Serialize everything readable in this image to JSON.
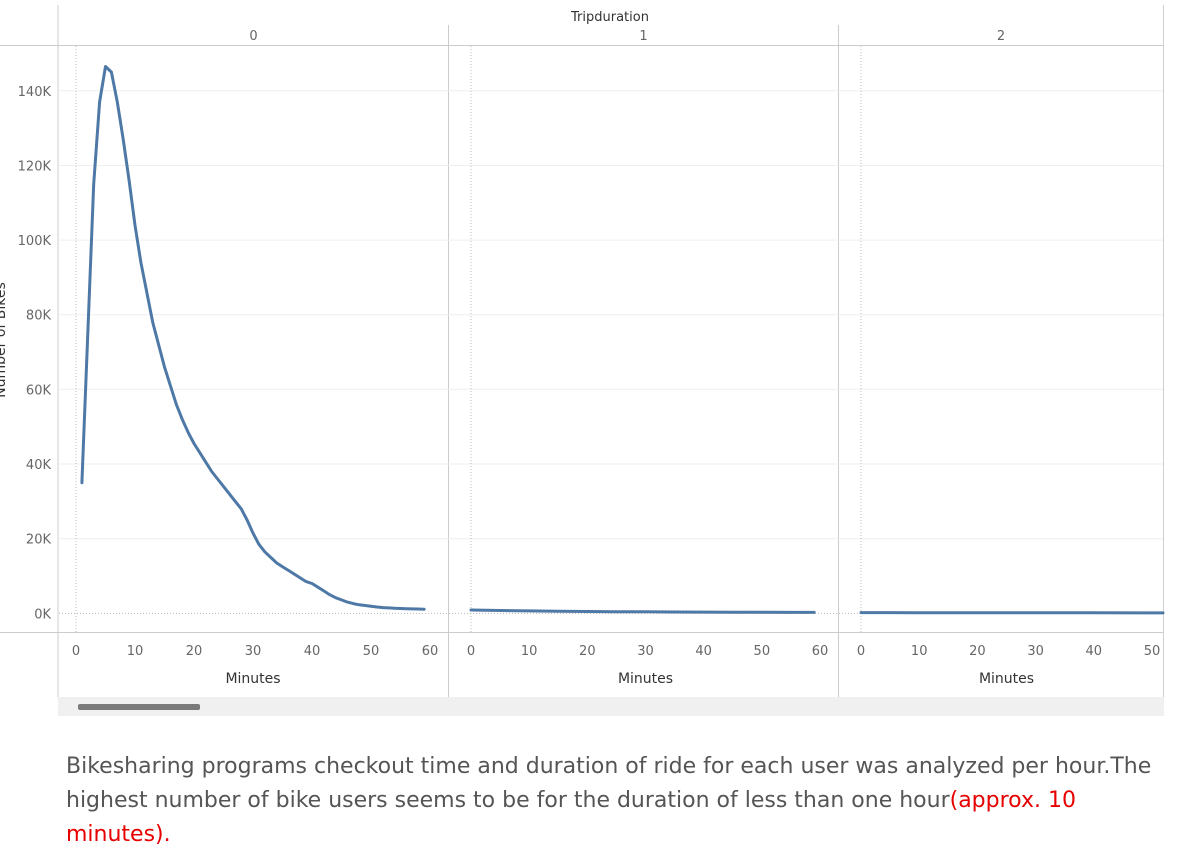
{
  "chart_data": {
    "type": "line",
    "column_header": "Tripduration",
    "ylabel": "Number of Bikes",
    "ylim": [
      -5000,
      152000
    ],
    "y_ticks": [
      {
        "label": "0K",
        "value": 0
      },
      {
        "label": "20K",
        "value": 20000
      },
      {
        "label": "40K",
        "value": 40000
      },
      {
        "label": "60K",
        "value": 60000
      },
      {
        "label": "80K",
        "value": 80000
      },
      {
        "label": "100K",
        "value": 100000
      },
      {
        "label": "120K",
        "value": 120000
      },
      {
        "label": "140K",
        "value": 140000
      }
    ],
    "line_color": "#4e79a7",
    "panels": [
      {
        "label": "0",
        "xlabel": "Minutes",
        "xlim": [
          -2,
          63
        ],
        "x_ticks": [
          0,
          10,
          20,
          30,
          40,
          50,
          60
        ],
        "series": [
          {
            "x": [
              1,
              2,
              3,
              4,
              5,
              6,
              7,
              8,
              9,
              10,
              11,
              12,
              13,
              14,
              15,
              16,
              17,
              18,
              19,
              20,
              21,
              22,
              23,
              24,
              25,
              26,
              27,
              28,
              29,
              30,
              31,
              32,
              33,
              34,
              35,
              36,
              37,
              38,
              39,
              40,
              41,
              42,
              43,
              44,
              45,
              46,
              47,
              48,
              49,
              50,
              51,
              52,
              53,
              54,
              55,
              56,
              57,
              58,
              59
            ],
            "y": [
              35000,
              75000,
              115000,
              137000,
              146500,
              145000,
              137000,
              127000,
              116000,
              104000,
              94000,
              86000,
              78000,
              72000,
              66000,
              61000,
              56000,
              52000,
              48500,
              45500,
              43000,
              40500,
              38000,
              36000,
              34000,
              32000,
              30000,
              28000,
              25000,
              21500,
              18500,
              16500,
              15000,
              13500,
              12500,
              11500,
              10500,
              9500,
              8500,
              8000,
              7000,
              6000,
              5000,
              4200,
              3600,
              3000,
              2600,
              2300,
              2100,
              1900,
              1700,
              1550,
              1450,
              1350,
              1300,
              1250,
              1200,
              1150,
              1100
            ]
          }
        ]
      },
      {
        "label": "1",
        "xlabel": "Minutes",
        "xlim": [
          0,
          60
        ],
        "x_ticks": [
          0,
          10,
          20,
          30,
          40,
          50,
          60
        ],
        "series": [
          {
            "x": [
              0,
              5,
              10,
              15,
              20,
              25,
              30,
              35,
              40,
              45,
              50,
              55,
              59
            ],
            "y": [
              900,
              750,
              650,
              550,
              500,
              450,
              400,
              350,
              320,
              300,
              280,
              260,
              250
            ]
          }
        ]
      },
      {
        "label": "2",
        "xlabel": "Minutes",
        "xlim": [
          0,
          52
        ],
        "x_ticks": [
          0,
          10,
          20,
          30,
          40,
          50
        ],
        "series": [
          {
            "x": [
              0,
              10,
              20,
              30,
              40,
              50,
              52
            ],
            "y": [
              200,
              180,
              160,
              150,
              140,
              130,
              130
            ]
          }
        ]
      }
    ]
  },
  "caption": {
    "text": "Bikesharing programs checkout time and duration of ride  for each user was analyzed per hour.The highest number of bike users seems to be for the duration of less than one hour",
    "highlight": "(approx. 10 minutes)."
  }
}
